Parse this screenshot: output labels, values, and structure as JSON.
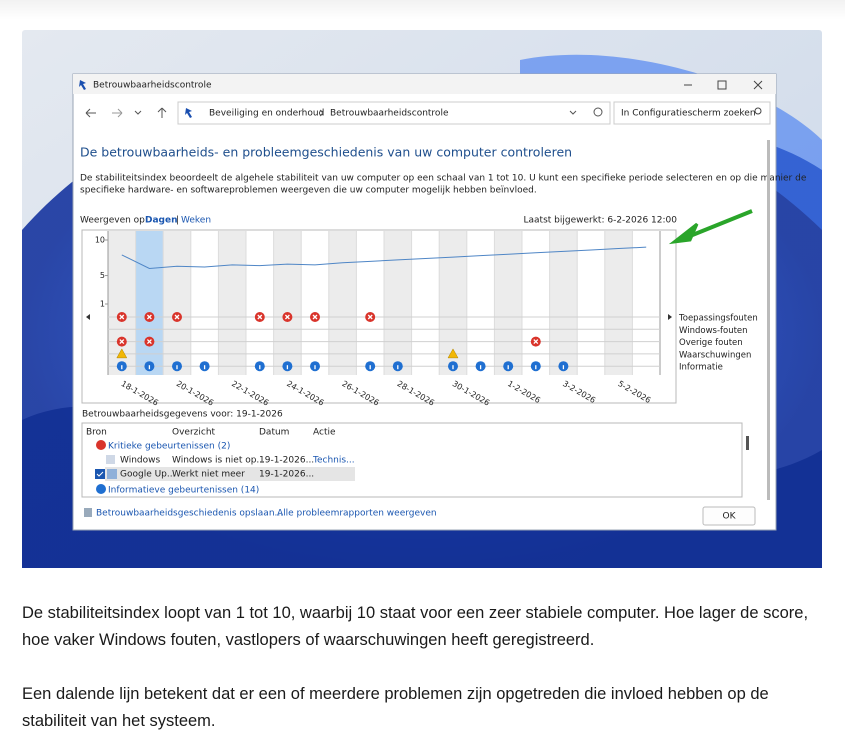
{
  "window": {
    "title": "Betrouwbaarheidscontrole",
    "breadcrumb": [
      "Beveiliging en onderhoud",
      "Betrouwbaarheidscontrole"
    ],
    "search_placeholder": "In Configuratiescherm zoeken"
  },
  "heading": "De betrouwbaarheids- en probleemgeschiedenis van uw computer controleren",
  "description": [
    "De stabiliteitsindex beoordeelt de algehele stabiliteit van uw computer op een schaal van 1 tot 10. U kunt een specifieke periode selecteren en op die manier de",
    "specifieke hardware- en softwareproblemen weergeven die uw computer mogelijk hebben beïnvloed."
  ],
  "view": {
    "label": "Weergeven op:",
    "options": [
      "Dagen",
      "Weken"
    ],
    "separator": "|",
    "last_updated": "Laatst bijgewerkt: 6-2-2026 12:00"
  },
  "chart": {
    "ylim": [
      1,
      10
    ],
    "yticks": [
      1,
      5,
      10
    ],
    "selected": 1,
    "dates": [
      "18-1-2026",
      null,
      "20-1-2026",
      null,
      "22-1-2026",
      null,
      "24-1-2026",
      null,
      "26-1-2026",
      null,
      "28-1-2026",
      null,
      "30-1-2026",
      null,
      "1-2-2026",
      null,
      "3-2-2026",
      null,
      "5-2-2026",
      null
    ],
    "stability": [
      7.9,
      6.0,
      6.3,
      6.2,
      6.5,
      6.4,
      6.6,
      6.5,
      6.8,
      7.0,
      7.2,
      7.4,
      7.6,
      7.8,
      8.0,
      8.2,
      8.4,
      8.6,
      8.8,
      9.0
    ],
    "rows": [
      {
        "name": "Toepassingsfouten",
        "icon": "error",
        "events": [
          0,
          1,
          2,
          5,
          6,
          7,
          9
        ]
      },
      {
        "name": "Windows-fouten",
        "icon": "error",
        "events": []
      },
      {
        "name": "Overige fouten",
        "icon": "error",
        "events": [
          0,
          1,
          15
        ]
      },
      {
        "name": "Waarschuwingen",
        "icon": "warning",
        "events": [
          0,
          12
        ]
      },
      {
        "name": "Informatie",
        "icon": "info",
        "events": [
          0,
          1,
          2,
          3,
          5,
          6,
          7,
          9,
          10,
          12,
          13,
          14,
          15,
          16
        ]
      }
    ]
  },
  "details": {
    "title": "Betrouwbaarheidsgegevens voor: 19-1-2026",
    "columns": [
      "Bron",
      "Overzicht",
      "Datum",
      "Actie"
    ],
    "groups": [
      {
        "name": "Kritieke gebeurtenissen (2)",
        "rows": [
          [
            "Windows",
            "Windows is niet op...",
            "19-1-2026...",
            "Technis..."
          ],
          [
            "Google Up...",
            "Werkt niet meer",
            "19-1-2026..."
          ]
        ]
      },
      {
        "name": "Informatieve gebeurtenissen (14)",
        "rows": []
      }
    ]
  },
  "footer": {
    "links": [
      "Betrouwbaarheidsgeschiedenis opslaan...",
      "Alle probleemrapporten weergeven"
    ],
    "button": "OK"
  },
  "article": {
    "paragraphs": [
      "De stabiliteitsindex loopt van 1 tot 10, waarbij 10 staat voor een zeer stabiele computer. Hoe lager de score, hoe vaker Windows fouten, vastlopers of waarschuwingen heeft geregistreerd.",
      "Een dalende lijn betekent dat er een of meerdere problemen zijn opgetreden die invloed hebben op de stabiliteit van het systeem."
    ]
  }
}
